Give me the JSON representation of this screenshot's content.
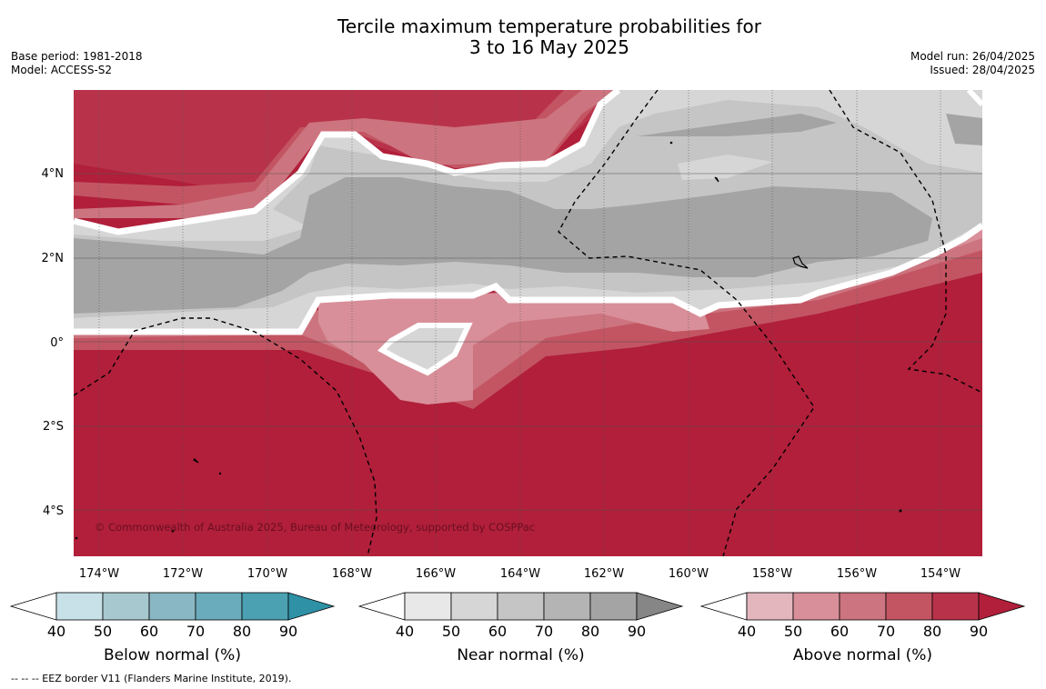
{
  "title": {
    "line1": "Tercile maximum temperature probabilities for",
    "line2": "3 to 16 May 2025"
  },
  "meta_left": {
    "base_period": "Base period: 1981-2018",
    "model": "Model: ACCESS-S2"
  },
  "meta_right": {
    "model_run": "Model run: 26/04/2025",
    "issued": "Issued: 28/04/2025"
  },
  "map": {
    "lat_ticks": [
      "4°N",
      "2°N",
      "0°",
      "2°S",
      "4°S"
    ],
    "lon_ticks": [
      "174°W",
      "172°W",
      "170°W",
      "168°W",
      "166°W",
      "164°W",
      "162°W",
      "160°W",
      "158°W",
      "156°W",
      "154°W"
    ],
    "copyright": "© Commonwealth of Australia 2025, Bureau of Meteorology, supported by COSPPac",
    "colors": {
      "above_dominant": "#b11f3a",
      "near_dominant": "#a4a4a4",
      "near_light": "#d6d6d6",
      "outline": "#ffffff"
    }
  },
  "colorbars": [
    {
      "name": "below",
      "label": "Below normal (%)",
      "ticks": [
        "40",
        "50",
        "60",
        "70",
        "80",
        "90"
      ],
      "colors": [
        "#c8e1e8",
        "#a8c8cf",
        "#8ab7c4",
        "#6aacbb",
        "#4ba1b1",
        "#2e91a6"
      ]
    },
    {
      "name": "near",
      "label": "Near normal (%)",
      "ticks": [
        "40",
        "50",
        "60",
        "70",
        "80",
        "90"
      ],
      "colors": [
        "#e8e8e8",
        "#d6d6d6",
        "#c5c5c5",
        "#b4b4b4",
        "#a4a4a4",
        "#868686"
      ]
    },
    {
      "name": "above",
      "label": "Above normal (%)",
      "ticks": [
        "40",
        "50",
        "60",
        "70",
        "80",
        "90"
      ],
      "colors": [
        "#e3b6bd",
        "#d88f99",
        "#cc747f",
        "#c35562",
        "#b8334a",
        "#b11f3a"
      ]
    }
  ],
  "footer": "-- -- -- EEZ border V11 (Flanders Marine Institute, 2019)."
}
